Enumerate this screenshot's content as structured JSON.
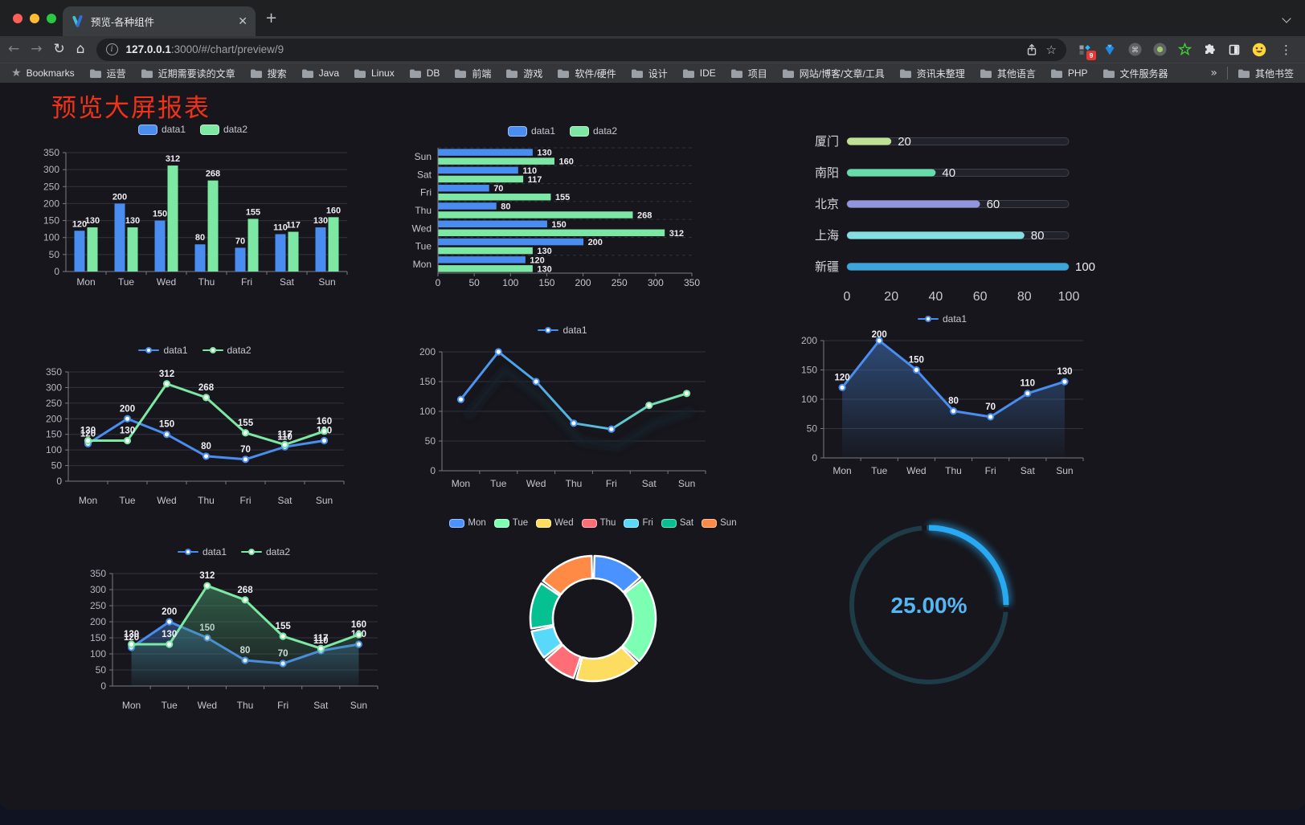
{
  "browser": {
    "tab_title": "预览-各种组件",
    "url_host": "127.0.0.1",
    "url_rest": ":3000/#/chart/preview/9",
    "new_tab_label": "+",
    "close_tab_label": "✕",
    "bookmarks_label": "Bookmarks",
    "bookmarks": [
      "运营",
      "近期需要读的文章",
      "搜索",
      "Java",
      "Linux",
      "DB",
      "前端",
      "游戏",
      "软件/硬件",
      "设计",
      "IDE",
      "项目",
      "网站/博客/文章/工具",
      "资讯未整理",
      "其他语言",
      "PHP",
      "文件服务器"
    ],
    "bookmarks_overflow": "»",
    "other_bookmarks": "其他书签",
    "extension_badge": "9"
  },
  "page": {
    "title": "预览大屏报表"
  },
  "colors": {
    "data1_blue": "#4a8df0",
    "data2_green": "#7ce8a4",
    "page_title_red": "#f03217",
    "axis_text": "#b6b6c2",
    "grid_line": "#33333d"
  },
  "chart_data": [
    {
      "id": "grouped-bar",
      "type": "bar",
      "legend": {
        "type": "rect",
        "items": [
          "data1",
          "data2"
        ]
      },
      "categories": [
        "Mon",
        "Tue",
        "Wed",
        "Thu",
        "Fri",
        "Sat",
        "Sun"
      ],
      "series": [
        {
          "name": "data1",
          "color": "#4a8df0",
          "values": [
            120,
            200,
            150,
            80,
            70,
            110,
            130
          ]
        },
        {
          "name": "data2",
          "color": "#7ce8a4",
          "values": [
            130,
            130,
            312,
            268,
            155,
            117,
            160
          ]
        }
      ],
      "ylim": [
        0,
        350
      ],
      "yticks": [
        0,
        50,
        100,
        150,
        200,
        250,
        300,
        350
      ],
      "value_labels": true
    },
    {
      "id": "horizontal-bar",
      "type": "hbar",
      "legend": {
        "type": "rect",
        "items": [
          "data1",
          "data2"
        ]
      },
      "categories": [
        "Mon",
        "Tue",
        "Wed",
        "Thu",
        "Fri",
        "Sat",
        "Sun"
      ],
      "series": [
        {
          "name": "data1",
          "color": "#4a8df0",
          "values": [
            120,
            200,
            150,
            80,
            70,
            110,
            130
          ]
        },
        {
          "name": "data2",
          "color": "#7ce8a4",
          "values": [
            130,
            130,
            312,
            268,
            155,
            117,
            160
          ]
        }
      ],
      "xlim": [
        0,
        350
      ],
      "xticks": [
        0,
        50,
        100,
        150,
        200,
        250,
        300,
        350
      ],
      "value_labels": true
    },
    {
      "id": "progress-bars",
      "type": "progress",
      "items": [
        {
          "label": "厦门",
          "value": 20,
          "color": "#bfe195"
        },
        {
          "label": "南阳",
          "value": 40,
          "color": "#66dcab"
        },
        {
          "label": "北京",
          "value": 60,
          "color": "#9196dc"
        },
        {
          "label": "上海",
          "value": 80,
          "color": "#84e0e0"
        },
        {
          "label": "新疆",
          "value": 100,
          "color": "#3ba5dc"
        }
      ],
      "max": 100,
      "xticks": [
        0,
        20,
        40,
        60,
        80,
        100
      ]
    },
    {
      "id": "multi-line",
      "type": "line",
      "legend": {
        "type": "dot",
        "items": [
          "data1",
          "data2"
        ]
      },
      "categories": [
        "Mon",
        "Tue",
        "Wed",
        "Thu",
        "Fri",
        "Sat",
        "Sun"
      ],
      "series": [
        {
          "name": "data1",
          "color": "#4a8df0",
          "values": [
            120,
            200,
            150,
            80,
            70,
            110,
            130
          ]
        },
        {
          "name": "data2",
          "color": "#7ce8a4",
          "values": [
            130,
            130,
            312,
            268,
            155,
            117,
            160
          ]
        }
      ],
      "ylim": [
        0,
        350
      ],
      "yticks": [
        0,
        50,
        100,
        150,
        200,
        250,
        300,
        350
      ],
      "value_labels": true,
      "big_x_gap": true
    },
    {
      "id": "gradient-line",
      "type": "line",
      "legend": {
        "type": "dot",
        "items": [
          "data1"
        ]
      },
      "categories": [
        "Mon",
        "Tue",
        "Wed",
        "Thu",
        "Fri",
        "Sat",
        "Sun"
      ],
      "series": [
        {
          "name": "data1",
          "color": "#4a8df0",
          "gradient": [
            "#4a90f5",
            "#58c0d8",
            "#7ce8a4"
          ],
          "values": [
            120,
            200,
            150,
            80,
            70,
            110,
            130
          ]
        }
      ],
      "ylim": [
        0,
        200
      ],
      "yticks": [
        0,
        50,
        100,
        150,
        200
      ],
      "value_labels": false,
      "shadow": true
    },
    {
      "id": "area-single",
      "type": "line",
      "legend": {
        "type": "dot",
        "items": [
          "data1"
        ]
      },
      "categories": [
        "Mon",
        "Tue",
        "Wed",
        "Thu",
        "Fri",
        "Sat",
        "Sun"
      ],
      "series": [
        {
          "name": "data1",
          "color": "#4a8df0",
          "area": [
            "rgba(64,118,192,0.55)",
            "rgba(64,118,192,0.03)"
          ],
          "values": [
            120,
            200,
            150,
            80,
            70,
            110,
            130
          ]
        }
      ],
      "ylim": [
        0,
        200
      ],
      "yticks": [
        0,
        50,
        100,
        150,
        200
      ],
      "value_labels": true
    },
    {
      "id": "area-double",
      "type": "line",
      "legend": {
        "type": "dot",
        "items": [
          "data1",
          "data2"
        ]
      },
      "categories": [
        "Mon",
        "Tue",
        "Wed",
        "Thu",
        "Fri",
        "Sat",
        "Sun"
      ],
      "series": [
        {
          "name": "data1",
          "color": "#4a8df0",
          "area": [
            "rgba(58,108,178,0.55)",
            "rgba(58,108,178,0.04)"
          ],
          "values": [
            120,
            200,
            150,
            80,
            70,
            110,
            130
          ]
        },
        {
          "name": "data2",
          "color": "#7ce8a4",
          "area": [
            "rgba(70,150,105,0.55)",
            "rgba(70,150,105,0.04)"
          ],
          "values": [
            130,
            130,
            312,
            268,
            155,
            117,
            160
          ]
        }
      ],
      "ylim": [
        0,
        350
      ],
      "yticks": [
        0,
        50,
        100,
        150,
        200,
        250,
        300,
        350
      ],
      "value_labels": true,
      "big_x_gap": true
    },
    {
      "id": "donut",
      "type": "donut",
      "legend": {
        "type": "rect",
        "items": [
          "Mon",
          "Tue",
          "Wed",
          "Thu",
          "Fri",
          "Sat",
          "Sun"
        ]
      },
      "slices": [
        {
          "name": "Mon",
          "value": 120,
          "color": "#4992ff"
        },
        {
          "name": "Tue",
          "value": 200,
          "color": "#7cffb2"
        },
        {
          "name": "Wed",
          "value": 150,
          "color": "#fddd60"
        },
        {
          "name": "Thu",
          "value": 80,
          "color": "#ff6e76"
        },
        {
          "name": "Fri",
          "value": 70,
          "color": "#58d9f9"
        },
        {
          "name": "Sat",
          "value": 110,
          "color": "#05c091"
        },
        {
          "name": "Sun",
          "value": 130,
          "color": "#ff8a45"
        }
      ]
    },
    {
      "id": "gauge",
      "type": "gauge",
      "label": "25.00%",
      "percent": 25,
      "color": "#28a9f2",
      "track_color": "#1d3c47",
      "text_color": "#55b6f3"
    }
  ]
}
